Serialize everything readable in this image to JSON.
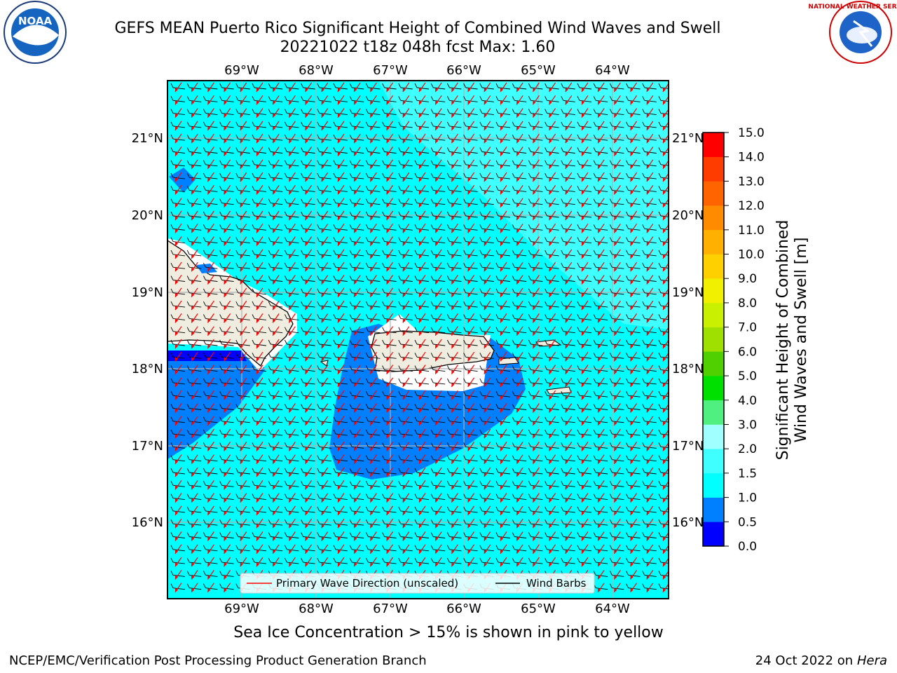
{
  "title_line1": "GEFS MEAN Puerto Rico Significant Height of Combined Wind Waves and Swell",
  "title_line2": "20221022 t18z 048h fcst   Max: 1.60",
  "lon_labels": [
    "69°W",
    "68°W",
    "67°W",
    "66°W",
    "65°W",
    "64°W"
  ],
  "lat_labels": [
    "21°N",
    "20°N",
    "19°N",
    "18°N",
    "17°N",
    "16°N"
  ],
  "legend": {
    "wave_direction": "Primary Wave Direction (unscaled)",
    "wind_barbs": "Wind Barbs"
  },
  "colorbar": {
    "label_line1": "Significant Height of Combined",
    "label_line2": "Wind Waves and Swell [m]",
    "ticks": [
      "0.0",
      "0.5",
      "1.0",
      "1.5",
      "2.0",
      "3.0",
      "4.0",
      "5.0",
      "6.0",
      "7.0",
      "8.0",
      "9.0",
      "10.0",
      "11.0",
      "12.0",
      "13.0",
      "14.0",
      "15.0"
    ],
    "colors": [
      "#0000ff",
      "#0080ff",
      "#00ffff",
      "#40ffff",
      "#a0ffff",
      "#50f080",
      "#00e000",
      "#50d000",
      "#a0e000",
      "#c8f000",
      "#f0f000",
      "#ffd000",
      "#ffb000",
      "#ff8c00",
      "#ff6400",
      "#ff3c00",
      "#ff0000"
    ]
  },
  "sea_ice_note": "Sea Ice Concentration > 15% is shown in pink to yellow",
  "credit": "NCEP/EMC/Verification Post Processing Product Generation Branch",
  "date_prefix": "24 Oct 2022 on ",
  "date_host": "Hera",
  "logos": {
    "noaa": "NOAA",
    "nws": "NATIONAL WEATHER SERVICE"
  },
  "colors": {
    "ocean_base": "#00ffff",
    "ocean_light": "#40ffff",
    "wave_low": "#0080ff",
    "wave_lowest": "#0000ff",
    "land": "#efeddf",
    "arrow": "#ff0000",
    "grid": "#b0b0b0"
  }
}
